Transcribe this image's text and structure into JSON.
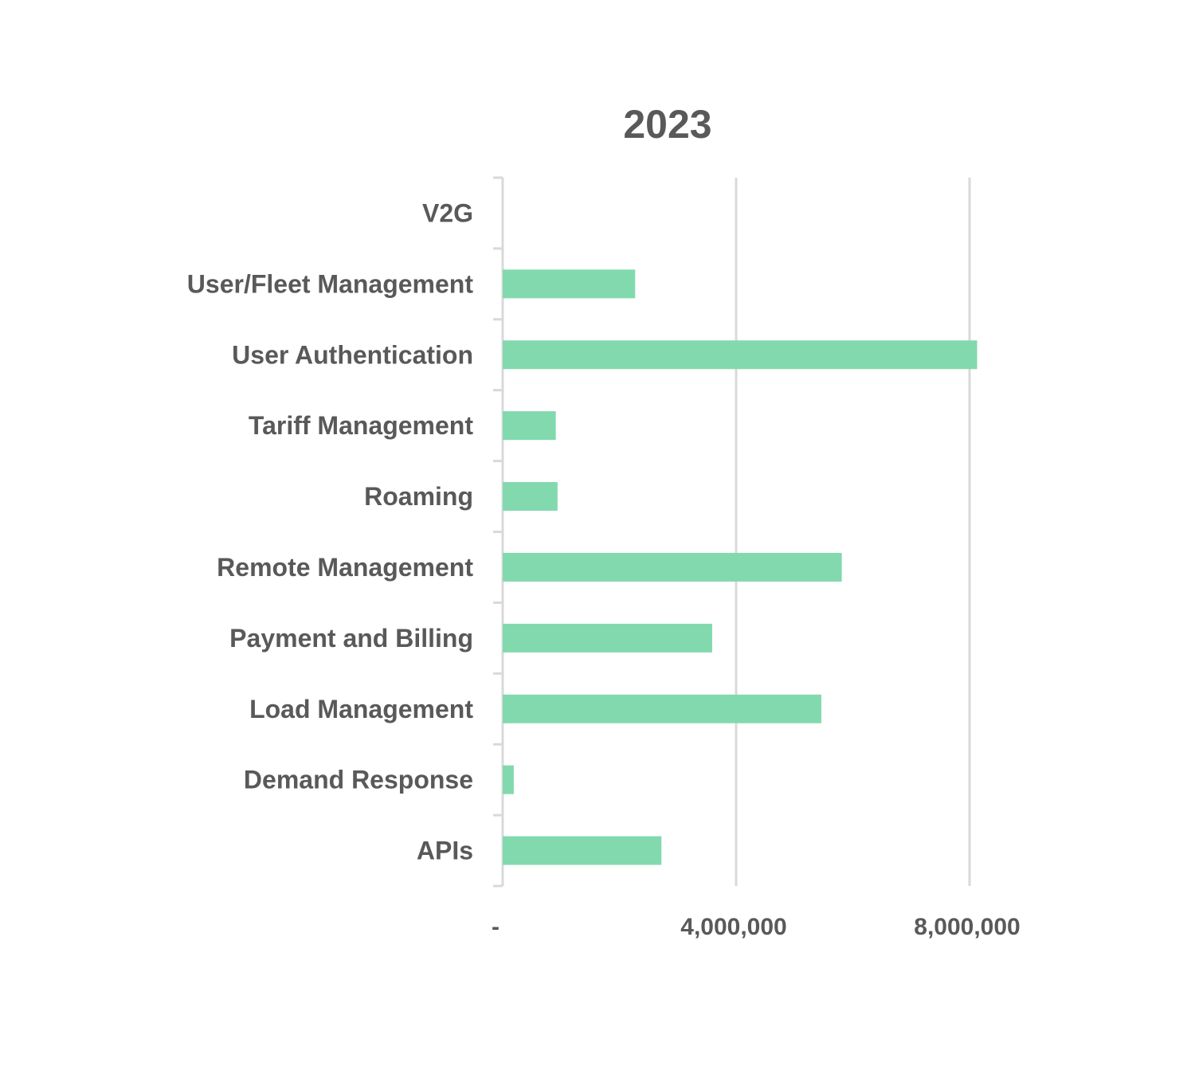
{
  "chart_data": {
    "type": "bar",
    "orientation": "horizontal",
    "title": "2023",
    "categories": [
      "V2G",
      "User/Fleet Management",
      "User Authentication",
      "Tariff Management",
      "Roaming",
      "Remote Management",
      "Payment and Billing",
      "Load Management",
      "Demand Response",
      "APIs"
    ],
    "values": [
      0,
      2270000,
      8130000,
      910000,
      940000,
      5810000,
      3590000,
      5460000,
      190000,
      2720000
    ],
    "xlim": [
      0,
      8000000
    ],
    "x_ticks": [
      0,
      4000000,
      8000000
    ],
    "x_tick_labels": [
      "-",
      "4,000,000",
      "8,000,000"
    ],
    "xlabel": "",
    "ylabel": "",
    "grid": "vertical",
    "legend": "none",
    "colors": {
      "bar": "#82D9AE",
      "text": "#595959",
      "grid": "#D9D9D9"
    }
  }
}
